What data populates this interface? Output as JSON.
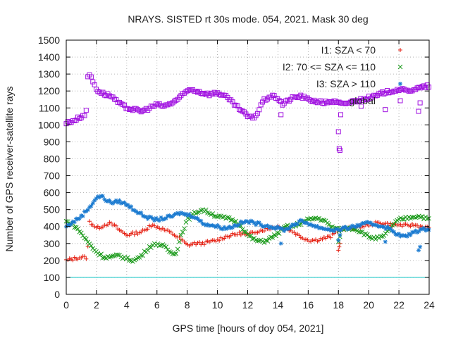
{
  "chart_data": {
    "type": "scatter",
    "title": "NRAYS. SISTED rt 30s mode. 054, 2021. Mask 30 deg",
    "xlabel": "GPS time [hours of doy 054, 2021]",
    "ylabel": "Number of GPS receiver-satellite rays",
    "xlim": [
      0,
      24
    ],
    "ylim": [
      0,
      1500
    ],
    "x_ticks": [
      0,
      2,
      4,
      6,
      8,
      10,
      12,
      14,
      16,
      18,
      20,
      22,
      24
    ],
    "y_ticks": [
      0,
      100,
      200,
      300,
      400,
      500,
      600,
      700,
      800,
      900,
      1000,
      1100,
      1200,
      1300,
      1400,
      1500
    ],
    "grid": true,
    "legend_position": "top-right",
    "reference_line": {
      "y": 100,
      "color": "#00c0c0"
    },
    "series": [
      {
        "name": "I1: SZA < 70",
        "marker": "+",
        "color": "#e51e10",
        "x": [
          0,
          0.5,
          1,
          1.4,
          1.5,
          1.8,
          2,
          2.3,
          2.8,
          3.2,
          3.5,
          4,
          4.5,
          5,
          5.3,
          5.5,
          6,
          6.5,
          7,
          7.5,
          8,
          8.5,
          9,
          9.5,
          10,
          10.5,
          11,
          11.5,
          12,
          12.5,
          13,
          13.5,
          14,
          14.5,
          15,
          15.5,
          16,
          16.5,
          17,
          17.5,
          18,
          18.5,
          19,
          19.5,
          20,
          20.5,
          21,
          21.5,
          22,
          22.5,
          23,
          23.5,
          24
        ],
        "y": [
          200,
          210,
          220,
          215,
          430,
          410,
          390,
          400,
          420,
          405,
          380,
          350,
          360,
          370,
          380,
          410,
          400,
          380,
          360,
          330,
          290,
          300,
          300,
          310,
          320,
          340,
          350,
          360,
          350,
          370,
          380,
          390,
          400,
          390,
          370,
          340,
          320,
          320,
          330,
          340,
          380,
          390,
          390,
          400,
          410,
          420,
          420,
          410,
          410,
          405,
          410,
          400,
          390
        ]
      },
      {
        "name": "I2: 70 <= SZA <= 110",
        "marker": "x",
        "color": "#1a9a1a",
        "x": [
          0,
          0.3,
          0.6,
          1,
          1.5,
          2,
          2.5,
          3,
          3.5,
          4,
          4.5,
          5,
          5.5,
          6,
          6.5,
          7,
          7.3,
          7.6,
          8,
          8.5,
          9,
          9.5,
          10,
          10.5,
          11,
          11.5,
          12,
          12.5,
          13,
          13.5,
          14,
          14.5,
          15,
          15.5,
          16,
          16.5,
          17,
          17.5,
          18,
          18.5,
          19,
          19.5,
          20,
          20.5,
          21,
          21.5,
          22,
          22.5,
          23,
          23.5,
          24
        ],
        "y": [
          430,
          420,
          400,
          360,
          300,
          250,
          220,
          220,
          230,
          210,
          200,
          230,
          280,
          300,
          280,
          240,
          250,
          350,
          440,
          480,
          500,
          480,
          460,
          450,
          440,
          410,
          350,
          320,
          310,
          330,
          360,
          400,
          400,
          420,
          440,
          450,
          440,
          400,
          380,
          390,
          390,
          370,
          340,
          330,
          340,
          400,
          440,
          450,
          460,
          460,
          440
        ]
      },
      {
        "name": "I3: SZA > 110",
        "marker": "*",
        "color": "#1a7ad0",
        "x": [
          0,
          0.5,
          1,
          1.5,
          2,
          2.3,
          2.6,
          3,
          3.5,
          4,
          4.5,
          5,
          5.5,
          6,
          6.5,
          7,
          7.5,
          8,
          8.5,
          9,
          9.5,
          10,
          10.5,
          11,
          11.5,
          12,
          12.5,
          13,
          13.5,
          14,
          14.5,
          15,
          15.5,
          16,
          16.5,
          17,
          17.5,
          18,
          18.5,
          19,
          19.5,
          20,
          20.5,
          21,
          21.5,
          22,
          22.5,
          23,
          23.5,
          24
        ],
        "y": [
          400,
          430,
          460,
          510,
          570,
          580,
          560,
          540,
          550,
          530,
          500,
          470,
          450,
          440,
          450,
          460,
          480,
          470,
          460,
          420,
          410,
          400,
          390,
          400,
          420,
          430,
          420,
          410,
          400,
          390,
          380,
          410,
          430,
          420,
          400,
          390,
          380,
          380,
          390,
          400,
          410,
          420,
          410,
          400,
          380,
          350,
          340,
          370,
          380,
          390
        ]
      },
      {
        "name": "global",
        "marker": "square",
        "color": "#a010e0",
        "x": [
          0,
          0.3,
          0.6,
          1,
          1.3,
          1.45,
          1.6,
          1.8,
          2,
          2.3,
          2.6,
          3,
          3.3,
          3.6,
          4,
          4.5,
          5,
          5.5,
          6,
          6.5,
          7,
          7.5,
          8,
          8.3,
          8.6,
          9,
          9.5,
          10,
          10.5,
          11,
          11.5,
          12,
          12.3,
          12.6,
          13,
          13.5,
          14,
          14.3,
          14.6,
          15,
          15.5,
          16,
          16.5,
          17,
          17.5,
          18,
          18.3,
          18.6,
          19,
          19.5,
          20,
          20.5,
          21,
          21.5,
          22,
          22.5,
          23,
          23.5,
          24
        ],
        "y": [
          1010,
          1020,
          1030,
          1050,
          1060,
          1310,
          1290,
          1250,
          1210,
          1190,
          1180,
          1170,
          1140,
          1120,
          1100,
          1090,
          1080,
          1100,
          1120,
          1110,
          1130,
          1160,
          1200,
          1210,
          1200,
          1190,
          1180,
          1190,
          1170,
          1130,
          1090,
          1050,
          1040,
          1060,
          1140,
          1170,
          1160,
          1120,
          1140,
          1160,
          1170,
          1150,
          1140,
          1130,
          1140,
          1130,
          1120,
          1130,
          1140,
          1150,
          1160,
          1170,
          1190,
          1200,
          1210,
          1200,
          1210,
          1220,
          1230
        ]
      }
    ],
    "outliers": {
      "global": {
        "x": [
          18,
          18.05,
          18.1,
          18.15,
          14.2,
          19.5,
          21.1,
          23.3,
          23.4
        ],
        "y": [
          960,
          860,
          850,
          1060,
          1060,
          1110,
          1090,
          1080,
          1130
        ]
      },
      "I1: SZA < 70": {
        "x": [
          18,
          18.05,
          18.1
        ],
        "y": [
          260,
          280,
          300
        ]
      },
      "I2: 70 <= SZA <= 110": {
        "x": [
          18,
          18.1
        ],
        "y": [
          310,
          340
        ]
      },
      "I3: SZA > 110": {
        "x": [
          14.2,
          18,
          18.1,
          21.1,
          23.3,
          23.4
        ],
        "y": [
          300,
          320,
          350,
          310,
          260,
          280
        ]
      }
    }
  }
}
